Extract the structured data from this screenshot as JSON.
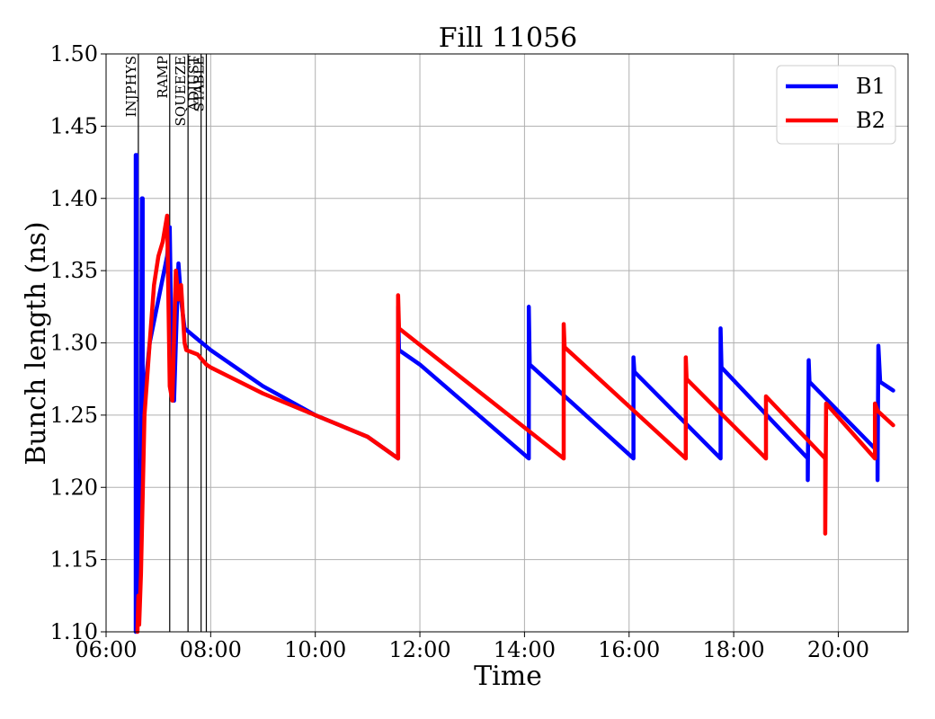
{
  "chart_data": {
    "type": "line",
    "title": "Fill 11056",
    "xlabel": "Time",
    "ylabel": "Bunch length (ns)",
    "xlim": [
      "06:00",
      "21:20"
    ],
    "ylim": [
      1.1,
      1.5
    ],
    "grid": true,
    "legend_position": "top-right",
    "x_ticks": [
      "06:00",
      "08:00",
      "10:00",
      "12:00",
      "14:00",
      "16:00",
      "18:00",
      "20:00"
    ],
    "y_ticks": [
      "1.10",
      "1.15",
      "1.20",
      "1.25",
      "1.30",
      "1.35",
      "1.40",
      "1.45",
      "1.50"
    ],
    "phases": [
      {
        "label": "INJPHYS",
        "time": "06:37"
      },
      {
        "label": "RAMP",
        "time": "07:13"
      },
      {
        "label": "SQUEEZE",
        "time": "07:34"
      },
      {
        "label": "ADJUST",
        "time": "07:49"
      },
      {
        "label": "STABLE",
        "time": "07:55"
      }
    ],
    "series": [
      {
        "name": "B1",
        "color": "#0000ff",
        "points": [
          [
            "06:34",
            1.1
          ],
          [
            "06:34",
            1.43
          ],
          [
            "06:35",
            1.43
          ],
          [
            "06:35",
            1.12
          ],
          [
            "06:37",
            1.13
          ],
          [
            "06:40",
            1.22
          ],
          [
            "06:41",
            1.4
          ],
          [
            "06:42",
            1.4
          ],
          [
            "06:42",
            1.25
          ],
          [
            "06:50",
            1.3
          ],
          [
            "07:00",
            1.33
          ],
          [
            "07:10",
            1.36
          ],
          [
            "07:13",
            1.38
          ],
          [
            "07:15",
            1.3
          ],
          [
            "07:18",
            1.26
          ],
          [
            "07:20",
            1.3
          ],
          [
            "07:23",
            1.355
          ],
          [
            "07:26",
            1.33
          ],
          [
            "07:30",
            1.31
          ],
          [
            "07:40",
            1.305
          ],
          [
            "08:00",
            1.295
          ],
          [
            "09:00",
            1.27
          ],
          [
            "10:00",
            1.25
          ],
          [
            "11:00",
            1.235
          ],
          [
            "11:35",
            1.22
          ],
          [
            "11:35",
            1.325
          ],
          [
            "11:36",
            1.295
          ],
          [
            "12:00",
            1.285
          ],
          [
            "14:05",
            1.22
          ],
          [
            "14:05",
            1.325
          ],
          [
            "14:06",
            1.285
          ],
          [
            "16:05",
            1.22
          ],
          [
            "16:05",
            1.29
          ],
          [
            "16:06",
            1.28
          ],
          [
            "17:45",
            1.22
          ],
          [
            "17:45",
            1.31
          ],
          [
            "17:46",
            1.283
          ],
          [
            "19:25",
            1.22
          ],
          [
            "19:25",
            1.205
          ],
          [
            "19:26",
            1.288
          ],
          [
            "19:27",
            1.273
          ],
          [
            "20:45",
            1.225
          ],
          [
            "20:45",
            1.205
          ],
          [
            "20:46",
            1.298
          ],
          [
            "20:48",
            1.273
          ],
          [
            "21:03",
            1.267
          ]
        ]
      },
      {
        "name": "B2",
        "color": "#ff0000",
        "points": [
          [
            "06:36",
            1.1
          ],
          [
            "06:37",
            1.125
          ],
          [
            "06:38",
            1.105
          ],
          [
            "06:40",
            1.14
          ],
          [
            "06:44",
            1.25
          ],
          [
            "06:50",
            1.3
          ],
          [
            "06:55",
            1.34
          ],
          [
            "07:00",
            1.36
          ],
          [
            "07:05",
            1.37
          ],
          [
            "07:10",
            1.388
          ],
          [
            "07:13",
            1.27
          ],
          [
            "07:16",
            1.26
          ],
          [
            "07:20",
            1.35
          ],
          [
            "07:23",
            1.33
          ],
          [
            "07:26",
            1.34
          ],
          [
            "07:30",
            1.3
          ],
          [
            "07:32",
            1.295
          ],
          [
            "07:45",
            1.292
          ],
          [
            "07:55",
            1.285
          ],
          [
            "08:00",
            1.283
          ],
          [
            "09:00",
            1.265
          ],
          [
            "10:00",
            1.25
          ],
          [
            "11:00",
            1.235
          ],
          [
            "11:35",
            1.22
          ],
          [
            "11:35",
            1.333
          ],
          [
            "11:36",
            1.31
          ],
          [
            "14:45",
            1.22
          ],
          [
            "14:45",
            1.313
          ],
          [
            "14:46",
            1.297
          ],
          [
            "17:05",
            1.22
          ],
          [
            "17:05",
            1.29
          ],
          [
            "17:06",
            1.275
          ],
          [
            "18:37",
            1.22
          ],
          [
            "18:37",
            1.263
          ],
          [
            "19:45",
            1.22
          ],
          [
            "19:45",
            1.168
          ],
          [
            "19:46",
            1.258
          ],
          [
            "20:42",
            1.22
          ],
          [
            "20:42",
            1.258
          ],
          [
            "20:45",
            1.253
          ],
          [
            "21:03",
            1.243
          ]
        ]
      }
    ]
  }
}
